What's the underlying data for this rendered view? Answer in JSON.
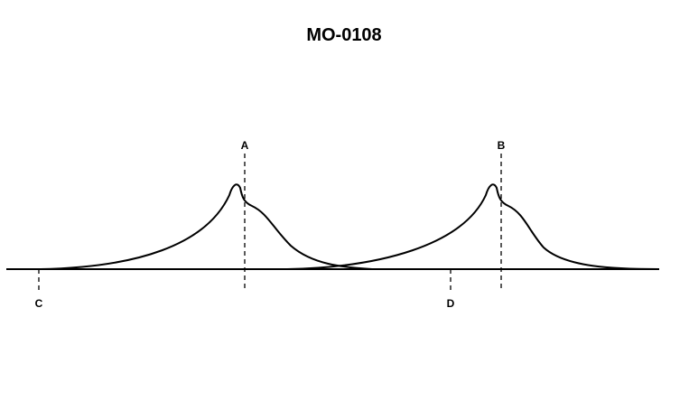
{
  "title": "MO-0108",
  "markers": [
    {
      "label": "A"
    },
    {
      "label": "B"
    },
    {
      "label": "C"
    },
    {
      "label": "D"
    }
  ]
}
